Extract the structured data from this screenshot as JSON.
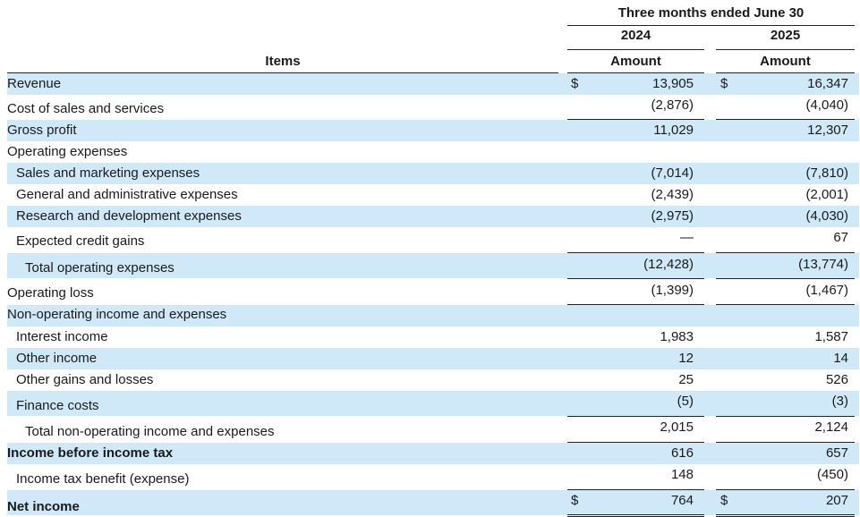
{
  "header": {
    "period": "Three months ended June 30",
    "year_2024": "2024",
    "year_2025": "2025",
    "items_label": "Items",
    "amount_2024": "Amount",
    "amount_2025": "Amount"
  },
  "rows": [
    {
      "label": "Revenue",
      "c24": "$",
      "v24": "13,905",
      "c25": "$",
      "v25": "16,347"
    },
    {
      "label": "Cost of sales and services",
      "v24": "(2,876)",
      "v25": "(4,040)"
    },
    {
      "label": "Gross profit",
      "v24": "11,029",
      "v25": "12,307"
    },
    {
      "label": "Operating expenses",
      "v24": "",
      "v25": ""
    },
    {
      "label": "Sales and marketing expenses",
      "v24": "(7,014)",
      "v25": "(7,810)"
    },
    {
      "label": "General and administrative expenses",
      "v24": "(2,439)",
      "v25": "(2,001)"
    },
    {
      "label": "Research and development expenses",
      "v24": "(2,975)",
      "v25": "(4,030)"
    },
    {
      "label": "Expected credit gains",
      "v24": "—",
      "v25": "67"
    },
    {
      "label": "Total operating expenses",
      "v24": "(12,428)",
      "v25": "(13,774)"
    },
    {
      "label": "Operating loss",
      "v24": "(1,399)",
      "v25": "(1,467)"
    },
    {
      "label": "Non-operating income and expenses",
      "v24": "",
      "v25": ""
    },
    {
      "label": "Interest income",
      "v24": "1,983",
      "v25": "1,587"
    },
    {
      "label": "Other income",
      "v24": "12",
      "v25": "14"
    },
    {
      "label": "Other gains and losses",
      "v24": "25",
      "v25": "526"
    },
    {
      "label": "Finance costs",
      "v24": "(5)",
      "v25": "(3)"
    },
    {
      "label": "Total non-operating income and expenses",
      "v24": "2,015",
      "v25": "2,124"
    },
    {
      "label": "Income before income tax",
      "v24": "616",
      "v25": "657"
    },
    {
      "label": "Income tax benefit (expense)",
      "v24": "148",
      "v25": "(450)"
    },
    {
      "label": "Net income",
      "c24": "$",
      "v24": "764",
      "c25": "$",
      "v25": "207"
    }
  ]
}
